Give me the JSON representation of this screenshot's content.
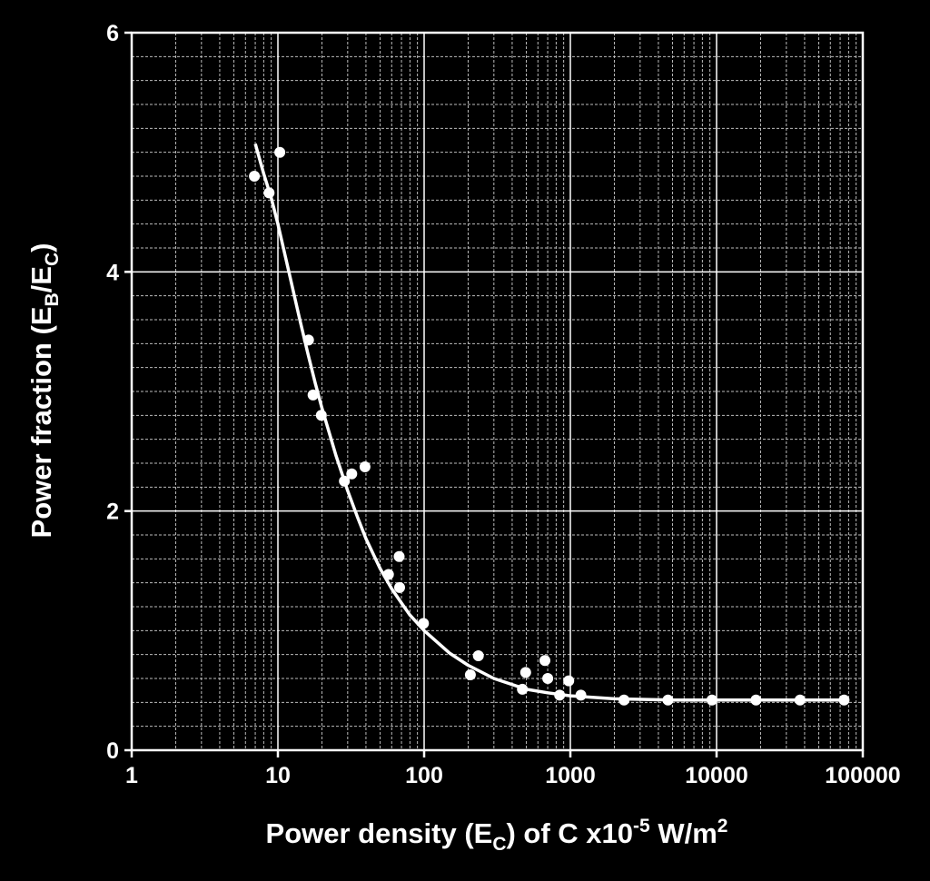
{
  "chart_data": {
    "type": "scatter",
    "title": "",
    "xlabel": {
      "parts": [
        "Power density (E",
        "C",
        ") of C x10",
        "-5",
        " W/m",
        "2"
      ]
    },
    "ylabel": {
      "parts": [
        "Power fraction (E",
        "B",
        "/E",
        "C",
        ")"
      ]
    },
    "x_scale": "log",
    "xlim": [
      1,
      100000
    ],
    "ylim": [
      0,
      6
    ],
    "x_ticks": [
      1,
      10,
      100,
      1000,
      10000,
      100000
    ],
    "x_tick_labels": [
      "1",
      "10",
      "100",
      "1000",
      "10000",
      "100000"
    ],
    "y_ticks": [
      0,
      2,
      4,
      6
    ],
    "y_tick_labels": [
      "0",
      "2",
      "4",
      "6"
    ],
    "grid": true,
    "legend": "none",
    "colors": {
      "background": "#000000",
      "foreground": "#ffffff",
      "grid_minor": "#bbbbbb"
    },
    "series": [
      {
        "type": "scatter",
        "points": [
          [
            6.9,
            4.8
          ],
          [
            8.7,
            4.66
          ],
          [
            10.3,
            5.0
          ],
          [
            16.2,
            3.43
          ],
          [
            17.4,
            2.97
          ],
          [
            19.8,
            2.8
          ],
          [
            28.5,
            2.25
          ],
          [
            32,
            2.31
          ],
          [
            39.4,
            2.37
          ],
          [
            57,
            1.47
          ],
          [
            67.5,
            1.62
          ],
          [
            68,
            1.36
          ],
          [
            99,
            1.06
          ],
          [
            207,
            0.63
          ],
          [
            235,
            0.79
          ],
          [
            470,
            0.51
          ],
          [
            495,
            0.65
          ],
          [
            670,
            0.75
          ],
          [
            700,
            0.6
          ],
          [
            845,
            0.46
          ],
          [
            975,
            0.58
          ],
          [
            1180,
            0.46
          ],
          [
            2330,
            0.42
          ],
          [
            4650,
            0.42
          ],
          [
            9300,
            0.42
          ],
          [
            18600,
            0.42
          ],
          [
            37200,
            0.42
          ],
          [
            74500,
            0.42
          ]
        ]
      },
      {
        "type": "line",
        "points": [
          [
            7,
            5.07
          ],
          [
            8,
            4.82
          ],
          [
            9,
            4.62
          ],
          [
            10,
            4.4
          ],
          [
            12,
            3.98
          ],
          [
            14,
            3.62
          ],
          [
            16,
            3.32
          ],
          [
            18,
            3.07
          ],
          [
            20,
            2.86
          ],
          [
            25,
            2.46
          ],
          [
            30,
            2.17
          ],
          [
            35,
            1.95
          ],
          [
            40,
            1.77
          ],
          [
            50,
            1.52
          ],
          [
            60,
            1.35
          ],
          [
            70,
            1.23
          ],
          [
            80,
            1.13
          ],
          [
            100,
            1.0
          ],
          [
            150,
            0.81
          ],
          [
            200,
            0.71
          ],
          [
            300,
            0.6
          ],
          [
            500,
            0.51
          ],
          [
            700,
            0.48
          ],
          [
            1000,
            0.455
          ],
          [
            2000,
            0.43
          ],
          [
            5000,
            0.42
          ],
          [
            10000,
            0.42
          ],
          [
            50000,
            0.42
          ],
          [
            75000,
            0.42
          ]
        ]
      }
    ]
  }
}
